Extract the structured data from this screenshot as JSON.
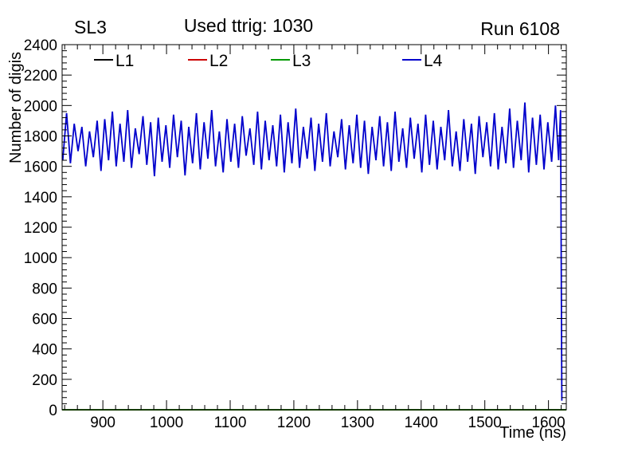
{
  "header": {
    "left_title": "SL3",
    "center_title": "Used ttrig: 1030",
    "right_title": "Run 6108"
  },
  "chart_data": {
    "type": "line",
    "title": "",
    "xlabel": "Time (ns)",
    "ylabel": "Number of digis",
    "xlim": [
      836,
      1628
    ],
    "ylim": [
      0,
      2400
    ],
    "x_ticks_major": [
      900,
      1000,
      1100,
      1200,
      1300,
      1400,
      1500,
      1600
    ],
    "x_minor_step": 20,
    "y_ticks_major": [
      0,
      200,
      400,
      600,
      800,
      1000,
      1200,
      1400,
      1600,
      1800,
      2000,
      2200,
      2400
    ],
    "y_minor_step": 40,
    "grid": false,
    "legend_position": "top-inside",
    "legend": [
      {
        "label": "L1",
        "color": "#000000"
      },
      {
        "label": "L2",
        "color": "#cc0000"
      },
      {
        "label": "L3",
        "color": "#009900"
      },
      {
        "label": "L4",
        "color": "#0000cc"
      }
    ],
    "series": [
      {
        "name": "L1",
        "color": "#000000",
        "points": [
          [
            836,
            0
          ],
          [
            1628,
            0
          ]
        ]
      },
      {
        "name": "L2",
        "color": "#cc0000",
        "points": [
          [
            836,
            0
          ],
          [
            1628,
            0
          ]
        ]
      },
      {
        "name": "L3",
        "color": "#009900",
        "points": [
          [
            836,
            0
          ],
          [
            1628,
            0
          ]
        ]
      },
      {
        "name": "L4",
        "color": "#0000cc",
        "x_start": 837,
        "x_step": 6,
        "values": [
          1640,
          1950,
          1620,
          1880,
          1700,
          1860,
          1600,
          1830,
          1660,
          1900,
          1570,
          1910,
          1640,
          1960,
          1600,
          1880,
          1630,
          1970,
          1590,
          1850,
          1680,
          1930,
          1610,
          1890,
          1535,
          1920,
          1630,
          1870,
          1590,
          1940,
          1660,
          1900,
          1540,
          1860,
          1620,
          1950,
          1580,
          1890,
          1650,
          1970,
          1600,
          1830,
          1560,
          1910,
          1630,
          1880,
          1590,
          1930,
          1670,
          1850,
          1610,
          1960,
          1580,
          1900,
          1640,
          1870,
          1600,
          1940,
          1560,
          1890,
          1620,
          1980,
          1590,
          1860,
          1650,
          1920,
          1570,
          1880,
          1630,
          1950,
          1600,
          1830,
          1660,
          1910,
          1580,
          1870,
          1620,
          1940,
          1590,
          1900,
          1550,
          1860,
          1640,
          1930,
          1600,
          1890,
          1570,
          1960,
          1630,
          1850,
          1590,
          1920,
          1650,
          1880,
          1560,
          1940,
          1610,
          1900,
          1580,
          1860,
          1640,
          1970,
          1600,
          1830,
          1570,
          1910,
          1630,
          1880,
          1550,
          1930,
          1660,
          1890,
          1600,
          1950,
          1580,
          1860,
          1620,
          1980,
          1590,
          1900,
          1640,
          2020,
          1560,
          1920,
          1610,
          1940,
          1580,
          1890,
          1630,
          2000
        ],
        "tail": [
          [
            1616,
            1640
          ],
          [
            1619,
            1970
          ],
          [
            1621,
            60
          ]
        ]
      }
    ]
  }
}
